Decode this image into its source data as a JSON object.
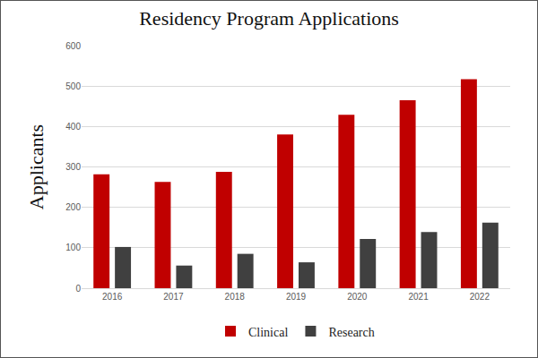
{
  "chart_data": {
    "type": "bar",
    "title": "Residency Program Applications",
    "y_label": "Applicants",
    "categories": [
      "2016",
      "2017",
      "2018",
      "2019",
      "2020",
      "2021",
      "2022"
    ],
    "series": [
      {
        "name": "Clinical",
        "color": "#c00000",
        "values": [
          282,
          263,
          288,
          380,
          429,
          465,
          517
        ]
      },
      {
        "name": "Research",
        "color": "#404040",
        "values": [
          102,
          56,
          85,
          64,
          122,
          139,
          162
        ]
      }
    ],
    "ylim": [
      0,
      600
    ],
    "yticks": [
      0,
      100,
      200,
      300,
      400,
      500,
      600
    ],
    "grid": true,
    "legend": "bottom"
  }
}
